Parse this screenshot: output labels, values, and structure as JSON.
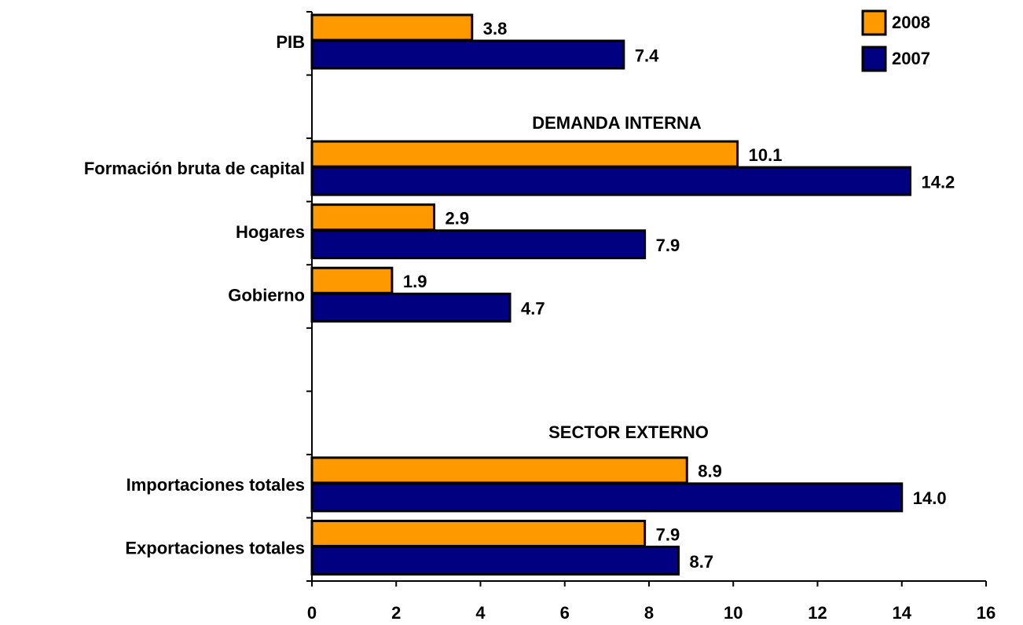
{
  "chart_data": {
    "type": "bar",
    "orientation": "horizontal",
    "categories": [
      "PIB",
      null,
      "Formación bruta de capital",
      "Hogares",
      "Gobierno",
      null,
      null,
      "Importaciones totales",
      "Exportaciones totales"
    ],
    "series": [
      {
        "name": "2008",
        "color": "#ff9900",
        "values": [
          3.8,
          null,
          10.1,
          2.9,
          1.9,
          null,
          null,
          8.9,
          7.9
        ]
      },
      {
        "name": "2007",
        "color": "#000080",
        "values": [
          7.4,
          null,
          14.2,
          7.9,
          4.7,
          null,
          null,
          14.0,
          8.7
        ],
        "value_labels": [
          "7.4",
          null,
          "14.2",
          "7.9",
          "4.7",
          null,
          null,
          "14.0",
          "8.7"
        ]
      }
    ],
    "annotations": [
      "DEMANDA INTERNA",
      "SECTOR EXTERNO"
    ],
    "xlim": [
      0,
      16
    ],
    "xticks": [
      0,
      2,
      4,
      6,
      8,
      10,
      12,
      14,
      16
    ],
    "legend": "top-right"
  }
}
